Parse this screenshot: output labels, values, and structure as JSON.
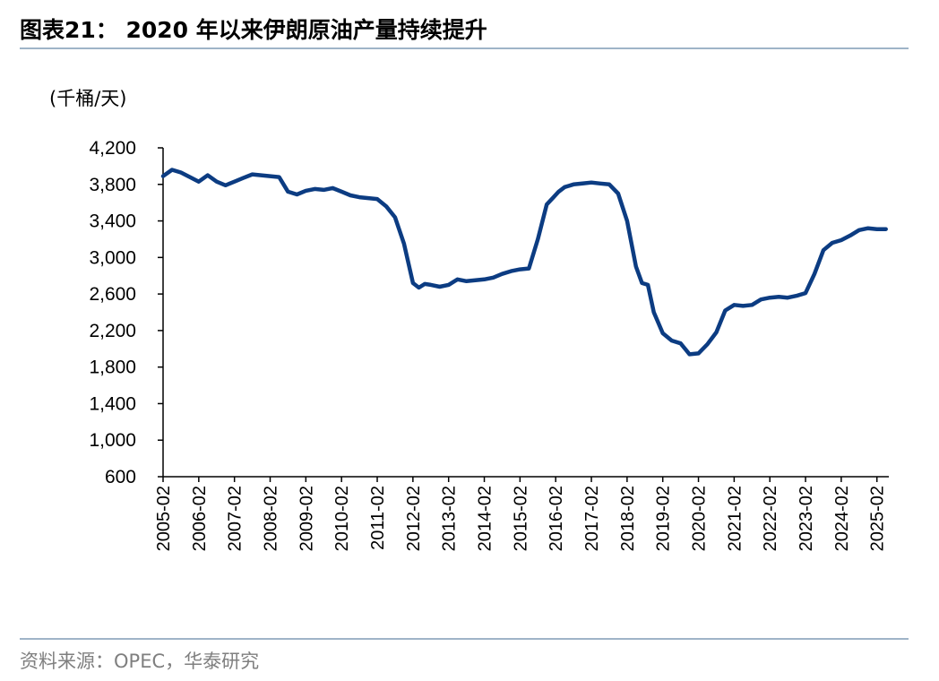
{
  "header": {
    "title": "图表21： 2020 年以来伊朗原油产量持续提升"
  },
  "footer": {
    "source": "资料来源：OPEC，华泰研究"
  },
  "chart_data": {
    "type": "line",
    "ylabel": "(千桶/天)",
    "ylim": [
      600,
      4200
    ],
    "yticks": [
      600,
      1000,
      1400,
      1800,
      2200,
      2600,
      3000,
      3400,
      3800,
      4200
    ],
    "ytick_labels": [
      "600",
      "1,000",
      "1,400",
      "1,800",
      "2,200",
      "2,600",
      "3,000",
      "3,400",
      "3,800",
      "4,200"
    ],
    "xlim": [
      "2005-02",
      "2025-06"
    ],
    "xtick_labels": [
      "2005-02",
      "2006-02",
      "2007-02",
      "2008-02",
      "2009-02",
      "2010-02",
      "2011-02",
      "2012-02",
      "2013-02",
      "2014-02",
      "2015-02",
      "2016-02",
      "2017-02",
      "2018-02",
      "2019-02",
      "2020-02",
      "2021-02",
      "2022-02",
      "2023-02",
      "2024-02",
      "2025-02"
    ],
    "grid": false,
    "colors": {
      "line": "#0c3c82",
      "axis": "#000000"
    },
    "series": [
      {
        "x": [
          "2005-02",
          "2005-05",
          "2005-08",
          "2005-11",
          "2006-02",
          "2006-05",
          "2006-08",
          "2006-11",
          "2007-02",
          "2007-05",
          "2007-08",
          "2007-11",
          "2008-02",
          "2008-05",
          "2008-08",
          "2008-11",
          "2009-02",
          "2009-05",
          "2009-08",
          "2009-11",
          "2010-02",
          "2010-05",
          "2010-08",
          "2010-11",
          "2011-02",
          "2011-05",
          "2011-08",
          "2011-11",
          "2012-02",
          "2012-04",
          "2012-06",
          "2012-08",
          "2012-11",
          "2013-02",
          "2013-05",
          "2013-08",
          "2013-11",
          "2014-02",
          "2014-05",
          "2014-08",
          "2014-11",
          "2015-02",
          "2015-05",
          "2015-08",
          "2015-11",
          "2016-01",
          "2016-03",
          "2016-05",
          "2016-08",
          "2016-11",
          "2017-02",
          "2017-05",
          "2017-08",
          "2017-11",
          "2018-02",
          "2018-05",
          "2018-07",
          "2018-09",
          "2018-11",
          "2019-02",
          "2019-05",
          "2019-08",
          "2019-11",
          "2020-02",
          "2020-05",
          "2020-08",
          "2020-11",
          "2021-02",
          "2021-05",
          "2021-08",
          "2021-11",
          "2022-02",
          "2022-05",
          "2022-08",
          "2022-11",
          "2023-02",
          "2023-05",
          "2023-08",
          "2023-11",
          "2024-02",
          "2024-05",
          "2024-08",
          "2024-11",
          "2025-02",
          "2025-05"
        ],
        "values": [
          3890,
          3960,
          3930,
          3880,
          3830,
          3900,
          3830,
          3790,
          3830,
          3870,
          3910,
          3900,
          3890,
          3880,
          3720,
          3690,
          3730,
          3750,
          3740,
          3760,
          3720,
          3680,
          3660,
          3650,
          3640,
          3560,
          3440,
          3150,
          2720,
          2670,
          2710,
          2700,
          2680,
          2700,
          2760,
          2740,
          2750,
          2760,
          2780,
          2820,
          2850,
          2870,
          2880,
          3200,
          3580,
          3650,
          3720,
          3770,
          3800,
          3810,
          3820,
          3810,
          3800,
          3700,
          3400,
          2900,
          2720,
          2700,
          2400,
          2170,
          2090,
          2060,
          1940,
          1950,
          2050,
          2180,
          2420,
          2480,
          2470,
          2480,
          2540,
          2560,
          2570,
          2560,
          2580,
          2610,
          2820,
          3080,
          3160,
          3190,
          3240,
          3300,
          3320,
          3310,
          3310
        ]
      }
    ]
  }
}
